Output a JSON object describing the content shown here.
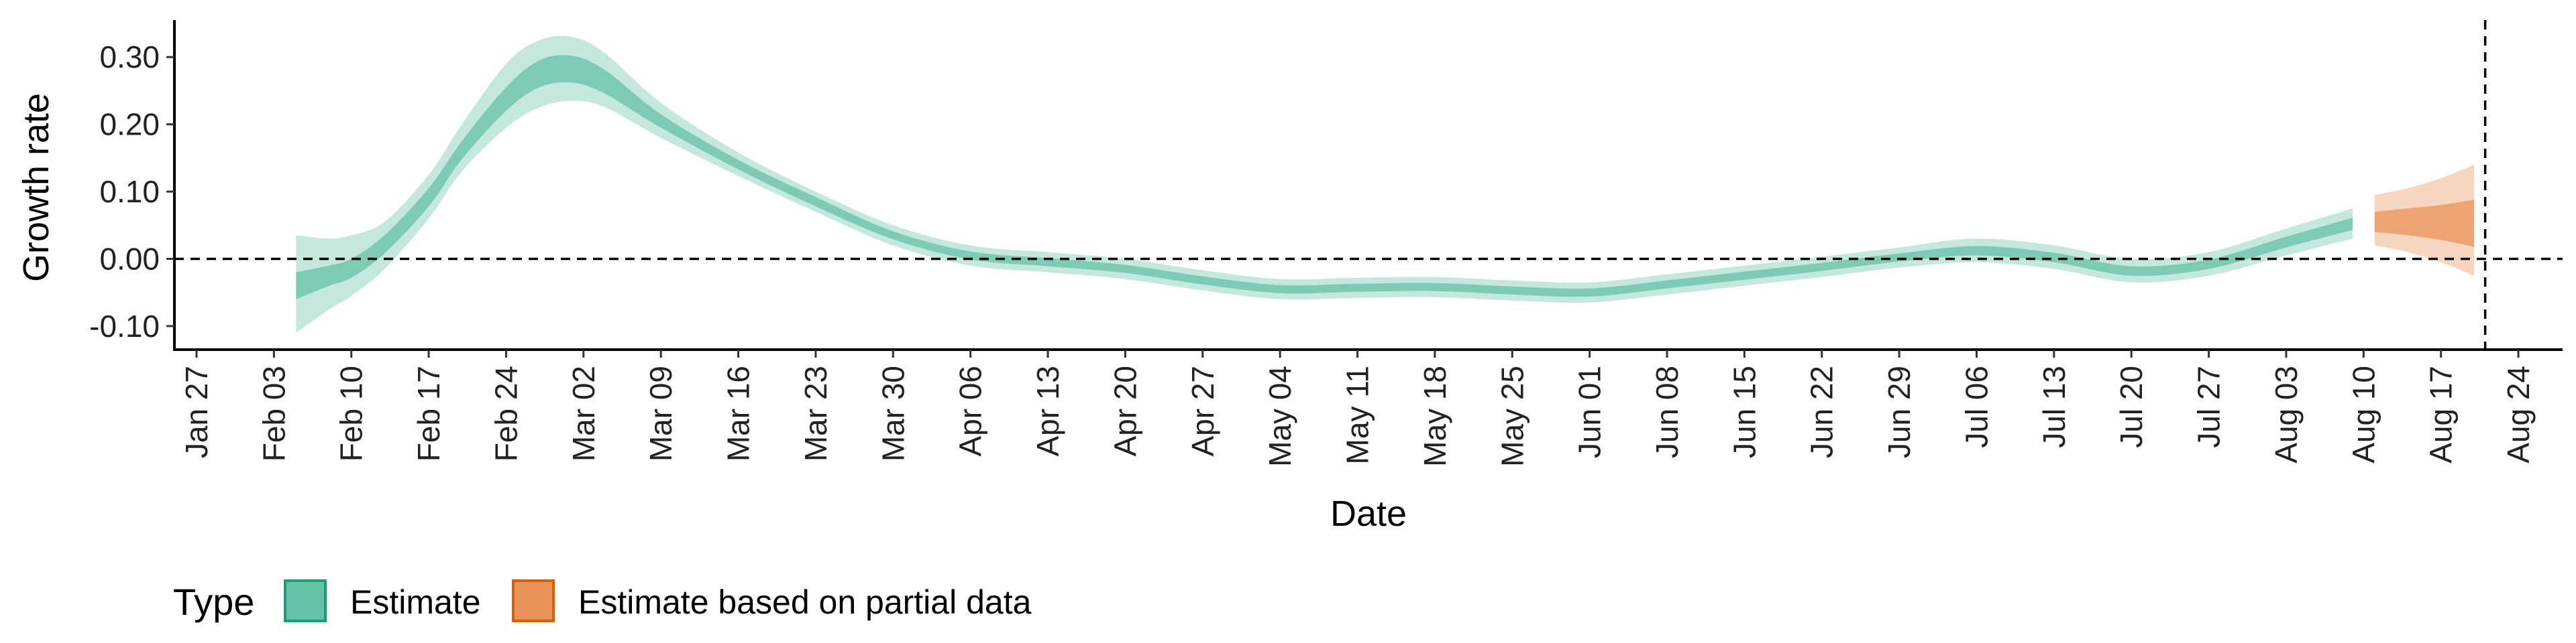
{
  "chart_data": {
    "type": "area",
    "xlabel": "Date",
    "ylabel": "Growth rate",
    "x_ticks": [
      "Jan 27",
      "Feb 03",
      "Feb 10",
      "Feb 17",
      "Feb 24",
      "Mar 02",
      "Mar 09",
      "Mar 16",
      "Mar 23",
      "Mar 30",
      "Apr 06",
      "Apr 13",
      "Apr 20",
      "Apr 27",
      "May 04",
      "May 11",
      "May 18",
      "May 25",
      "Jun 01",
      "Jun 08",
      "Jun 15",
      "Jun 22",
      "Jun 29",
      "Jul 06",
      "Jul 13",
      "Jul 20",
      "Jul 27",
      "Aug 03",
      "Aug 10",
      "Aug 17",
      "Aug 24"
    ],
    "y_ticks": [
      "-0.10",
      "0.00",
      "0.10",
      "0.20",
      "0.30"
    ],
    "y_tick_values": [
      -0.1,
      0.0,
      0.1,
      0.2,
      0.3
    ],
    "ylim": [
      -0.135,
      0.355
    ],
    "xlim": [
      "Jan 25",
      "Aug 28"
    ],
    "reference_lines": {
      "horizontal_y": 0.0,
      "vertical_x": "Aug 21"
    },
    "legend": {
      "title": "Type",
      "position": "bottom-left",
      "items": [
        {
          "label": "Estimate",
          "fill": "#66c2a5",
          "border": "#1b9e77"
        },
        {
          "label": "Estimate based on partial data",
          "fill": "#e9935a",
          "border": "#d95f02"
        }
      ]
    },
    "series": [
      {
        "name": "Estimate",
        "color": "#66c2a5",
        "points": [
          {
            "x": "Feb 05",
            "median": -0.045,
            "lo50": -0.06,
            "hi50": -0.02,
            "lo90": -0.11,
            "hi90": 0.035
          },
          {
            "x": "Feb 08",
            "median": -0.028,
            "lo50": -0.04,
            "hi50": -0.01,
            "lo90": -0.075,
            "hi90": 0.03
          },
          {
            "x": "Feb 10",
            "median": -0.015,
            "lo50": -0.028,
            "hi50": 0.0,
            "lo90": -0.055,
            "hi90": 0.035
          },
          {
            "x": "Feb 13",
            "median": 0.02,
            "lo50": 0.008,
            "hi50": 0.035,
            "lo90": -0.015,
            "hi90": 0.055
          },
          {
            "x": "Feb 17",
            "median": 0.09,
            "lo50": 0.078,
            "hi50": 0.105,
            "lo90": 0.06,
            "hi90": 0.125
          },
          {
            "x": "Feb 20",
            "median": 0.16,
            "lo50": 0.148,
            "hi50": 0.175,
            "lo90": 0.13,
            "hi90": 0.2
          },
          {
            "x": "Feb 24",
            "median": 0.235,
            "lo50": 0.22,
            "hi50": 0.255,
            "lo90": 0.195,
            "hi90": 0.29
          },
          {
            "x": "Feb 27",
            "median": 0.275,
            "lo50": 0.255,
            "hi50": 0.295,
            "lo90": 0.225,
            "hi90": 0.325
          },
          {
            "x": "Mar 01",
            "median": 0.282,
            "lo50": 0.262,
            "hi50": 0.302,
            "lo90": 0.235,
            "hi90": 0.33
          },
          {
            "x": "Mar 04",
            "median": 0.262,
            "lo50": 0.245,
            "hi50": 0.28,
            "lo90": 0.225,
            "hi90": 0.305
          },
          {
            "x": "Mar 09",
            "median": 0.205,
            "lo50": 0.195,
            "hi50": 0.215,
            "lo90": 0.18,
            "hi90": 0.232
          },
          {
            "x": "Mar 16",
            "median": 0.14,
            "lo50": 0.133,
            "hi50": 0.147,
            "lo90": 0.123,
            "hi90": 0.158
          },
          {
            "x": "Mar 23",
            "median": 0.085,
            "lo50": 0.078,
            "hi50": 0.092,
            "lo90": 0.07,
            "hi90": 0.1
          },
          {
            "x": "Mar 30",
            "median": 0.035,
            "lo50": 0.029,
            "hi50": 0.041,
            "lo90": 0.02,
            "hi90": 0.05
          },
          {
            "x": "Apr 06",
            "median": 0.005,
            "lo50": -0.001,
            "hi50": 0.011,
            "lo90": -0.01,
            "hi90": 0.02
          },
          {
            "x": "Apr 13",
            "median": -0.005,
            "lo50": -0.011,
            "hi50": 0.001,
            "lo90": -0.02,
            "hi90": 0.01
          },
          {
            "x": "Apr 20",
            "median": -0.015,
            "lo50": -0.021,
            "hi50": -0.009,
            "lo90": -0.03,
            "hi90": 0.0
          },
          {
            "x": "Apr 27",
            "median": -0.032,
            "lo50": -0.038,
            "hi50": -0.026,
            "lo90": -0.047,
            "hi90": -0.017
          },
          {
            "x": "May 04",
            "median": -0.045,
            "lo50": -0.051,
            "hi50": -0.039,
            "lo90": -0.06,
            "hi90": -0.03
          },
          {
            "x": "May 11",
            "median": -0.043,
            "lo50": -0.049,
            "hi50": -0.037,
            "lo90": -0.058,
            "hi90": -0.028
          },
          {
            "x": "May 18",
            "median": -0.042,
            "lo50": -0.048,
            "hi50": -0.036,
            "lo90": -0.057,
            "hi90": -0.027
          },
          {
            "x": "May 25",
            "median": -0.047,
            "lo50": -0.053,
            "hi50": -0.041,
            "lo90": -0.062,
            "hi90": -0.032
          },
          {
            "x": "Jun 01",
            "median": -0.05,
            "lo50": -0.056,
            "hi50": -0.044,
            "lo90": -0.065,
            "hi90": -0.035
          },
          {
            "x": "Jun 08",
            "median": -0.038,
            "lo50": -0.044,
            "hi50": -0.032,
            "lo90": -0.053,
            "hi90": -0.023
          },
          {
            "x": "Jun 15",
            "median": -0.025,
            "lo50": -0.031,
            "hi50": -0.019,
            "lo90": -0.04,
            "hi90": -0.01
          },
          {
            "x": "Jun 22",
            "median": -0.012,
            "lo50": -0.018,
            "hi50": -0.006,
            "lo90": -0.027,
            "hi90": 0.003
          },
          {
            "x": "Jun 29",
            "median": 0.002,
            "lo50": -0.004,
            "hi50": 0.008,
            "lo90": -0.013,
            "hi90": 0.017
          },
          {
            "x": "Jul 06",
            "median": 0.012,
            "lo50": 0.005,
            "hi50": 0.019,
            "lo90": -0.005,
            "hi90": 0.03
          },
          {
            "x": "Jul 13",
            "median": 0.002,
            "lo50": -0.005,
            "hi50": 0.009,
            "lo90": -0.015,
            "hi90": 0.02
          },
          {
            "x": "Jul 20",
            "median": -0.018,
            "lo50": -0.025,
            "hi50": -0.011,
            "lo90": -0.035,
            "hi90": 0.0
          },
          {
            "x": "Jul 27",
            "median": -0.008,
            "lo50": -0.015,
            "hi50": -0.001,
            "lo90": -0.025,
            "hi90": 0.01
          },
          {
            "x": "Aug 03",
            "median": 0.025,
            "lo50": 0.017,
            "hi50": 0.033,
            "lo90": 0.005,
            "hi90": 0.045
          },
          {
            "x": "Aug 09",
            "median": 0.052,
            "lo50": 0.043,
            "hi50": 0.061,
            "lo90": 0.03,
            "hi90": 0.075
          }
        ]
      },
      {
        "name": "Estimate based on partial data",
        "color": "#e9935a",
        "points": [
          {
            "x": "Aug 11",
            "median": 0.055,
            "lo50": 0.04,
            "hi50": 0.07,
            "lo90": 0.02,
            "hi90": 0.095
          },
          {
            "x": "Aug 14",
            "median": 0.055,
            "lo50": 0.035,
            "hi50": 0.075,
            "lo90": 0.01,
            "hi90": 0.105
          },
          {
            "x": "Aug 17",
            "median": 0.052,
            "lo50": 0.028,
            "hi50": 0.08,
            "lo90": -0.005,
            "hi90": 0.12
          },
          {
            "x": "Aug 20",
            "median": 0.048,
            "lo50": 0.018,
            "hi50": 0.088,
            "lo90": -0.025,
            "hi90": 0.14
          }
        ]
      }
    ]
  }
}
